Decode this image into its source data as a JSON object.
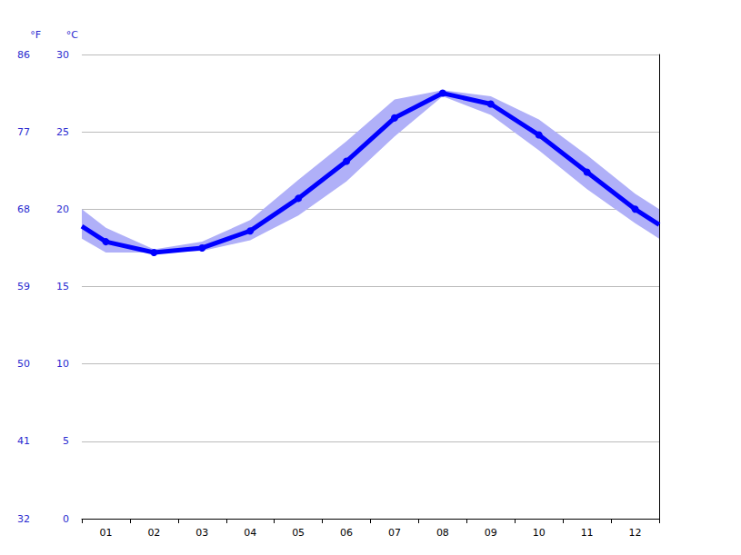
{
  "chart_data": {
    "type": "line",
    "y_label": "°C",
    "y2_label": "°F",
    "x": [
      0.5,
      1,
      2,
      3,
      4,
      5,
      6,
      7,
      8,
      9,
      10,
      11,
      12,
      12.5
    ],
    "xlim": [
      0.5,
      12.5
    ],
    "xticks": [
      {
        "value": 1,
        "label": "01"
      },
      {
        "value": 2,
        "label": "02"
      },
      {
        "value": 3,
        "label": "03"
      },
      {
        "value": 4,
        "label": "04"
      },
      {
        "value": 5,
        "label": "05"
      },
      {
        "value": 6,
        "label": "06"
      },
      {
        "value": 7,
        "label": "07"
      },
      {
        "value": 8,
        "label": "08"
      },
      {
        "value": 9,
        "label": "09"
      },
      {
        "value": 10,
        "label": "10"
      },
      {
        "value": 11,
        "label": "11"
      },
      {
        "value": 12,
        "label": "12"
      }
    ],
    "ylim": [
      0,
      30
    ],
    "yticks": [
      0,
      5,
      10,
      15,
      20,
      25,
      30
    ],
    "y2lim": [
      32,
      86
    ],
    "y2ticks": [
      32,
      41,
      50,
      59,
      68,
      77,
      86
    ],
    "grid": true,
    "series": [
      {
        "color": "#0000ff",
        "marker": "circle",
        "values": [
          18.9,
          17.9,
          17.2,
          17.5,
          18.6,
          20.7,
          23.1,
          25.9,
          27.5,
          26.8,
          24.8,
          22.4,
          20.0,
          19.0
        ],
        "lower": [
          18.1,
          17.2,
          17.2,
          17.3,
          18.0,
          19.6,
          21.8,
          24.7,
          27.3,
          26.1,
          23.8,
          21.3,
          19.1,
          18.1
        ],
        "upper": [
          20.0,
          18.8,
          17.4,
          17.9,
          19.3,
          21.9,
          24.4,
          27.1,
          27.7,
          27.3,
          25.8,
          23.5,
          21.0,
          20.0
        ]
      }
    ]
  }
}
